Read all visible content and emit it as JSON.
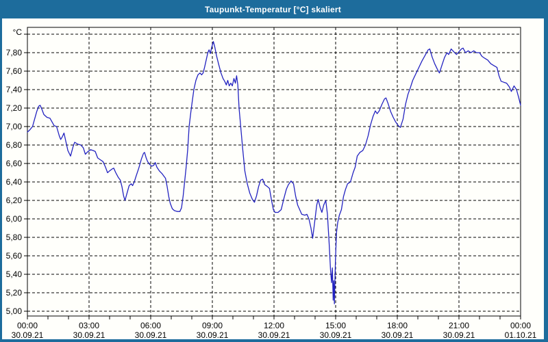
{
  "window": {
    "title": "Taupunkt-Temperatur [°C] skaliert"
  },
  "colors": {
    "titlebar_bg": "#1d6c9c",
    "frame_border": "#1d6c9c",
    "background": "#fffffb",
    "grid": "#000000",
    "axis": "#000000",
    "series_line": "#2222c0",
    "title_text": "#ffffff"
  },
  "chart_data": {
    "type": "line",
    "title": "Taupunkt-Temperatur [°C] skaliert",
    "unit_label": "°C",
    "grid": {
      "dashed": true,
      "horizontal_step": 0.2,
      "vertical_step_hours": 3
    },
    "y_axis": {
      "min": 5.0,
      "max": 8.0,
      "tick_step": 0.2,
      "decimal_separator": ",",
      "ticks": [
        {
          "v": 7.8,
          "label": "7,80"
        },
        {
          "v": 7.6,
          "label": "7,60"
        },
        {
          "v": 7.4,
          "label": "7,40"
        },
        {
          "v": 7.2,
          "label": "7,20"
        },
        {
          "v": 7.0,
          "label": "7,00"
        },
        {
          "v": 6.8,
          "label": "6,80"
        },
        {
          "v": 6.6,
          "label": "6,60"
        },
        {
          "v": 6.4,
          "label": "6,40"
        },
        {
          "v": 6.2,
          "label": "6,20"
        },
        {
          "v": 6.0,
          "label": "6,00"
        },
        {
          "v": 5.8,
          "label": "5,80"
        },
        {
          "v": 5.6,
          "label": "5,60"
        },
        {
          "v": 5.4,
          "label": "5,40"
        },
        {
          "v": 5.2,
          "label": "5,20"
        },
        {
          "v": 5.0,
          "label": "5,00"
        }
      ]
    },
    "x_axis": {
      "hours_span": 24,
      "major_tick_hours": 3,
      "minor_tick_hours": 1,
      "ticks": [
        {
          "time": "00:00",
          "date": "30.09.21"
        },
        {
          "time": "03:00",
          "date": "30.09.21"
        },
        {
          "time": "06:00",
          "date": "30.09.21"
        },
        {
          "time": "09:00",
          "date": "30.09.21"
        },
        {
          "time": "12:00",
          "date": "30.09.21"
        },
        {
          "time": "15:00",
          "date": "30.09.21"
        },
        {
          "time": "18:00",
          "date": "30.09.21"
        },
        {
          "time": "21:00",
          "date": "30.09.21"
        },
        {
          "time": "00:00",
          "date": "01.10.21"
        }
      ]
    },
    "series": [
      {
        "name": "Taupunkt-Temperatur",
        "color": "#2222c0",
        "points": [
          [
            0.0,
            6.94
          ],
          [
            0.1,
            6.96
          ],
          [
            0.25,
            7.0
          ],
          [
            0.35,
            7.08
          ],
          [
            0.45,
            7.16
          ],
          [
            0.55,
            7.22
          ],
          [
            0.62,
            7.23
          ],
          [
            0.7,
            7.19
          ],
          [
            0.8,
            7.13
          ],
          [
            0.95,
            7.1
          ],
          [
            1.1,
            7.09
          ],
          [
            1.2,
            7.05
          ],
          [
            1.3,
            7.01
          ],
          [
            1.42,
            7.0
          ],
          [
            1.55,
            6.9
          ],
          [
            1.62,
            6.86
          ],
          [
            1.7,
            6.89
          ],
          [
            1.78,
            6.93
          ],
          [
            1.88,
            6.83
          ],
          [
            1.97,
            6.74
          ],
          [
            2.1,
            6.68
          ],
          [
            2.22,
            6.78
          ],
          [
            2.3,
            6.83
          ],
          [
            2.45,
            6.81
          ],
          [
            2.6,
            6.8
          ],
          [
            2.72,
            6.77
          ],
          [
            2.82,
            6.7
          ],
          [
            2.95,
            6.73
          ],
          [
            3.08,
            6.75
          ],
          [
            3.2,
            6.74
          ],
          [
            3.3,
            6.73
          ],
          [
            3.42,
            6.66
          ],
          [
            3.55,
            6.64
          ],
          [
            3.68,
            6.62
          ],
          [
            3.8,
            6.56
          ],
          [
            3.9,
            6.5
          ],
          [
            4.0,
            6.52
          ],
          [
            4.12,
            6.54
          ],
          [
            4.2,
            6.55
          ],
          [
            4.3,
            6.5
          ],
          [
            4.42,
            6.45
          ],
          [
            4.52,
            6.42
          ],
          [
            4.6,
            6.35
          ],
          [
            4.68,
            6.25
          ],
          [
            4.75,
            6.2
          ],
          [
            4.85,
            6.28
          ],
          [
            4.95,
            6.36
          ],
          [
            5.05,
            6.38
          ],
          [
            5.12,
            6.36
          ],
          [
            5.2,
            6.4
          ],
          [
            5.3,
            6.47
          ],
          [
            5.42,
            6.55
          ],
          [
            5.55,
            6.65
          ],
          [
            5.65,
            6.71
          ],
          [
            5.7,
            6.72
          ],
          [
            5.78,
            6.66
          ],
          [
            5.85,
            6.62
          ],
          [
            5.95,
            6.59
          ],
          [
            6.05,
            6.57
          ],
          [
            6.15,
            6.58
          ],
          [
            6.22,
            6.61
          ],
          [
            6.3,
            6.56
          ],
          [
            6.42,
            6.52
          ],
          [
            6.55,
            6.49
          ],
          [
            6.65,
            6.46
          ],
          [
            6.72,
            6.44
          ],
          [
            6.8,
            6.35
          ],
          [
            6.88,
            6.24
          ],
          [
            6.95,
            6.17
          ],
          [
            7.05,
            6.11
          ],
          [
            7.15,
            6.09
          ],
          [
            7.3,
            6.08
          ],
          [
            7.42,
            6.08
          ],
          [
            7.5,
            6.12
          ],
          [
            7.58,
            6.25
          ],
          [
            7.65,
            6.4
          ],
          [
            7.72,
            6.55
          ],
          [
            7.8,
            6.75
          ],
          [
            7.87,
            7.0
          ],
          [
            7.95,
            7.15
          ],
          [
            8.02,
            7.27
          ],
          [
            8.1,
            7.4
          ],
          [
            8.2,
            7.5
          ],
          [
            8.3,
            7.56
          ],
          [
            8.4,
            7.58
          ],
          [
            8.48,
            7.56
          ],
          [
            8.55,
            7.58
          ],
          [
            8.62,
            7.64
          ],
          [
            8.7,
            7.72
          ],
          [
            8.78,
            7.8
          ],
          [
            8.84,
            7.83
          ],
          [
            8.9,
            7.79
          ],
          [
            8.97,
            7.86
          ],
          [
            9.05,
            7.92
          ],
          [
            9.12,
            7.86
          ],
          [
            9.2,
            7.77
          ],
          [
            9.3,
            7.68
          ],
          [
            9.42,
            7.58
          ],
          [
            9.52,
            7.52
          ],
          [
            9.6,
            7.49
          ],
          [
            9.68,
            7.45
          ],
          [
            9.75,
            7.5
          ],
          [
            9.82,
            7.44
          ],
          [
            9.9,
            7.47
          ],
          [
            9.97,
            7.44
          ],
          [
            10.05,
            7.52
          ],
          [
            10.12,
            7.47
          ],
          [
            10.18,
            7.55
          ],
          [
            10.24,
            7.45
          ],
          [
            10.3,
            7.2
          ],
          [
            10.38,
            7.0
          ],
          [
            10.48,
            6.75
          ],
          [
            10.58,
            6.52
          ],
          [
            10.7,
            6.38
          ],
          [
            10.82,
            6.28
          ],
          [
            10.95,
            6.21
          ],
          [
            11.05,
            6.18
          ],
          [
            11.15,
            6.25
          ],
          [
            11.25,
            6.35
          ],
          [
            11.35,
            6.42
          ],
          [
            11.45,
            6.43
          ],
          [
            11.55,
            6.37
          ],
          [
            11.68,
            6.35
          ],
          [
            11.78,
            6.33
          ],
          [
            11.88,
            6.2
          ],
          [
            11.97,
            6.1
          ],
          [
            12.05,
            6.07
          ],
          [
            12.2,
            6.07
          ],
          [
            12.35,
            6.1
          ],
          [
            12.48,
            6.22
          ],
          [
            12.6,
            6.32
          ],
          [
            12.7,
            6.37
          ],
          [
            12.83,
            6.41
          ],
          [
            12.95,
            6.38
          ],
          [
            13.05,
            6.25
          ],
          [
            13.15,
            6.15
          ],
          [
            13.25,
            6.1
          ],
          [
            13.35,
            6.05
          ],
          [
            13.5,
            6.04
          ],
          [
            13.6,
            6.05
          ],
          [
            13.7,
            6.0
          ],
          [
            13.8,
            5.9
          ],
          [
            13.88,
            5.79
          ],
          [
            13.97,
            5.95
          ],
          [
            14.08,
            6.15
          ],
          [
            14.15,
            6.21
          ],
          [
            14.25,
            6.12
          ],
          [
            14.33,
            6.07
          ],
          [
            14.42,
            6.15
          ],
          [
            14.52,
            6.2
          ],
          [
            14.6,
            6.05
          ],
          [
            14.68,
            5.75
          ],
          [
            14.75,
            5.45
          ],
          [
            14.8,
            5.31
          ],
          [
            14.84,
            5.47
          ],
          [
            14.88,
            5.12
          ],
          [
            14.91,
            5.33
          ],
          [
            14.94,
            5.08
          ],
          [
            14.99,
            5.55
          ],
          [
            15.04,
            5.85
          ],
          [
            15.1,
            5.96
          ],
          [
            15.18,
            6.04
          ],
          [
            15.28,
            6.1
          ],
          [
            15.38,
            6.24
          ],
          [
            15.48,
            6.32
          ],
          [
            15.58,
            6.38
          ],
          [
            15.72,
            6.4
          ],
          [
            15.85,
            6.5
          ],
          [
            15.95,
            6.56
          ],
          [
            16.05,
            6.68
          ],
          [
            16.18,
            6.72
          ],
          [
            16.32,
            6.74
          ],
          [
            16.45,
            6.8
          ],
          [
            16.58,
            6.9
          ],
          [
            16.7,
            7.02
          ],
          [
            16.82,
            7.11
          ],
          [
            16.93,
            7.17
          ],
          [
            17.02,
            7.14
          ],
          [
            17.12,
            7.17
          ],
          [
            17.25,
            7.24
          ],
          [
            17.38,
            7.3
          ],
          [
            17.45,
            7.31
          ],
          [
            17.55,
            7.25
          ],
          [
            17.68,
            7.16
          ],
          [
            17.8,
            7.1
          ],
          [
            17.92,
            7.05
          ],
          [
            18.05,
            7.01
          ],
          [
            18.15,
            6.99
          ],
          [
            18.28,
            7.08
          ],
          [
            18.4,
            7.24
          ],
          [
            18.52,
            7.35
          ],
          [
            18.62,
            7.41
          ],
          [
            18.75,
            7.5
          ],
          [
            18.9,
            7.57
          ],
          [
            19.05,
            7.64
          ],
          [
            19.2,
            7.71
          ],
          [
            19.35,
            7.77
          ],
          [
            19.5,
            7.83
          ],
          [
            19.58,
            7.84
          ],
          [
            19.7,
            7.75
          ],
          [
            19.82,
            7.68
          ],
          [
            19.95,
            7.62
          ],
          [
            20.05,
            7.58
          ],
          [
            20.18,
            7.67
          ],
          [
            20.3,
            7.75
          ],
          [
            20.42,
            7.8
          ],
          [
            20.5,
            7.78
          ],
          [
            20.62,
            7.84
          ],
          [
            20.75,
            7.81
          ],
          [
            20.88,
            7.78
          ],
          [
            21.0,
            7.81
          ],
          [
            21.12,
            7.84
          ],
          [
            21.2,
            7.85
          ],
          [
            21.32,
            7.8
          ],
          [
            21.45,
            7.82
          ],
          [
            21.58,
            7.8
          ],
          [
            21.72,
            7.82
          ],
          [
            21.85,
            7.8
          ],
          [
            22.0,
            7.8
          ],
          [
            22.12,
            7.76
          ],
          [
            22.25,
            7.74
          ],
          [
            22.4,
            7.72
          ],
          [
            22.55,
            7.68
          ],
          [
            22.7,
            7.66
          ],
          [
            22.85,
            7.64
          ],
          [
            22.95,
            7.55
          ],
          [
            23.05,
            7.49
          ],
          [
            23.18,
            7.48
          ],
          [
            23.32,
            7.47
          ],
          [
            23.45,
            7.43
          ],
          [
            23.55,
            7.38
          ],
          [
            23.68,
            7.44
          ],
          [
            23.8,
            7.4
          ],
          [
            23.9,
            7.32
          ],
          [
            24.0,
            7.23
          ]
        ]
      }
    ]
  }
}
